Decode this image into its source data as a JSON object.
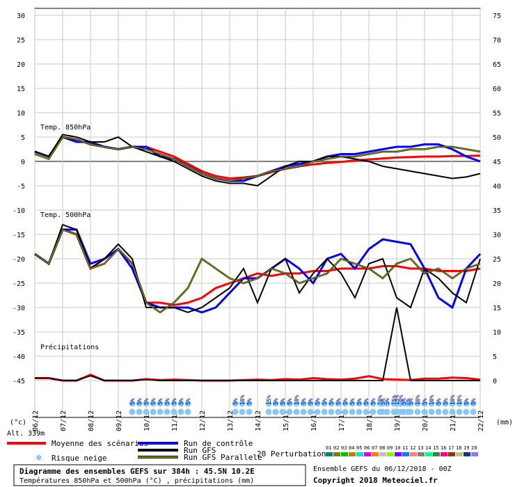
{
  "chart_data": {
    "type": "line",
    "left_axis_ticks": [
      30,
      25,
      20,
      15,
      10,
      5,
      0,
      -5,
      -10,
      -15,
      -20,
      -25,
      -30,
      -35,
      -40,
      -45
    ],
    "right_axis_ticks": [
      75,
      70,
      65,
      60,
      55,
      50,
      45,
      40,
      35,
      30,
      25,
      20,
      15,
      10,
      5,
      0
    ],
    "left_unit": "(°c)",
    "right_unit": "(mm)",
    "altitude": "Alt. 339m",
    "x_dates": [
      "06/12",
      "07/12",
      "08/12",
      "09/12",
      "10/12",
      "11/12",
      "12/12",
      "13/12",
      "14/12",
      "15/12",
      "16/12",
      "17/12",
      "18/12",
      "19/12",
      "20/12",
      "21/12",
      "22/12"
    ],
    "xlim": [
      0,
      16
    ],
    "ylim": [
      -45,
      30
    ],
    "panel_labels": {
      "t850": "Temp. 850hPa",
      "t500": "Temp. 500hPa",
      "precip": "Précipitations"
    },
    "series": [
      {
        "name": "Moyenne des scénarios",
        "color": "#ff0000",
        "panel": "t850",
        "x": [
          0,
          0.5,
          1,
          1.5,
          2,
          2.5,
          3,
          3.5,
          4,
          4.5,
          5,
          5.5,
          6,
          6.5,
          7,
          7.5,
          8,
          8.5,
          9,
          9.5,
          10,
          10.5,
          11,
          11.5,
          12,
          12.5,
          13,
          13.5,
          14,
          14.5,
          15,
          15.5,
          16
        ],
        "y": [
          2,
          1,
          5,
          4.5,
          3.5,
          3,
          2.5,
          3,
          3,
          2,
          1,
          -0.5,
          -2,
          -3,
          -3.5,
          -3.3,
          -3,
          -2.2,
          -1.5,
          -1,
          -0.6,
          -0.3,
          -0.1,
          0.2,
          0.4,
          0.6,
          0.8,
          0.9,
          1,
          1,
          1.1,
          1.1,
          1.2
        ]
      },
      {
        "name": "Run de contrôle",
        "color": "#0000ff",
        "panel": "t850",
        "x": [
          0,
          0.5,
          1,
          1.5,
          2,
          2.5,
          3,
          3.5,
          4,
          4.5,
          5,
          5.5,
          6,
          6.5,
          7,
          7.5,
          8,
          8.5,
          9,
          9.5,
          10,
          10.5,
          11,
          11.5,
          12,
          12.5,
          13,
          13.5,
          14,
          14.5,
          15,
          15.5,
          16
        ],
        "y": [
          2,
          1,
          5,
          4,
          4,
          3,
          2.5,
          3,
          3,
          1,
          0.5,
          -1,
          -2.5,
          -3.5,
          -4,
          -4,
          -3,
          -2,
          -1,
          -0.5,
          0,
          1,
          1.5,
          1.5,
          2,
          2.5,
          3,
          3,
          3.5,
          3.5,
          2.5,
          1,
          0
        ]
      },
      {
        "name": "Run GFS",
        "color": "#000000",
        "panel": "t850",
        "x": [
          0,
          0.5,
          1,
          1.5,
          2,
          2.5,
          3,
          3.5,
          4,
          4.5,
          5,
          5.5,
          6,
          6.5,
          7,
          7.5,
          8,
          8.5,
          9,
          9.5,
          10,
          10.5,
          11,
          11.5,
          12,
          12.5,
          13,
          13.5,
          14,
          14.5,
          15,
          15.5,
          16
        ],
        "y": [
          2,
          1,
          5.5,
          5,
          4,
          4,
          5,
          3,
          2,
          1,
          0,
          -1.5,
          -3,
          -4,
          -4.5,
          -4.5,
          -5,
          -3,
          -1,
          0,
          0,
          1,
          1,
          0.5,
          0,
          -1,
          -1.5,
          -2,
          -2.5,
          -3,
          -3.5,
          -3.2,
          -2.5
        ]
      },
      {
        "name": "Run GFS Parallele",
        "color": "#808000",
        "panel": "t850",
        "x": [
          0,
          0.5,
          1,
          1.5,
          2,
          2.5,
          3,
          3.5,
          4,
          4.5,
          5,
          5.5,
          6,
          6.5,
          7,
          7.5,
          8,
          8.5,
          9,
          9.5,
          10,
          10.5,
          11,
          11.5,
          12,
          12.5,
          13,
          13.5,
          14,
          14.5,
          15,
          15.5,
          16
        ],
        "y": [
          1.5,
          0.5,
          5,
          4.5,
          3.5,
          3,
          2.5,
          3,
          2.5,
          1.5,
          0.5,
          -1,
          -2.5,
          -3.5,
          -4,
          -3.5,
          -3,
          -2,
          -1.5,
          -1,
          0,
          0.5,
          1,
          1,
          1.5,
          2,
          2,
          2.5,
          2.5,
          3,
          3,
          2.5,
          2
        ]
      },
      {
        "name": "Moyenne des scénarios",
        "color": "#ff0000",
        "panel": "t500",
        "x": [
          0,
          0.5,
          1,
          1.5,
          2,
          2.5,
          3,
          3.5,
          4,
          4.5,
          5,
          5.5,
          6,
          6.5,
          7,
          7.5,
          8,
          8.5,
          9,
          9.5,
          10,
          10.5,
          11,
          11.5,
          12,
          12.5,
          13,
          13.5,
          14,
          14.5,
          15,
          15.5,
          16
        ],
        "y": [
          -19,
          -21,
          -14,
          -15,
          -22,
          -20,
          -18,
          -21,
          -29,
          -29,
          -29.5,
          -29,
          -28,
          -26,
          -25,
          -24,
          -23,
          -23.5,
          -23,
          -23,
          -22.5,
          -22.5,
          -22,
          -22,
          -22,
          -21.5,
          -21.5,
          -22,
          -22,
          -22.5,
          -22.5,
          -22.5,
          -22
        ]
      },
      {
        "name": "Run de contrôle",
        "color": "#0000ff",
        "panel": "t500",
        "x": [
          0,
          0.5,
          1,
          1.5,
          2,
          2.5,
          3,
          3.5,
          4,
          4.5,
          5,
          5.5,
          6,
          6.5,
          7,
          7.5,
          8,
          8.5,
          9,
          9.5,
          10,
          10.5,
          11,
          11.5,
          12,
          12.5,
          13,
          13.5,
          14,
          14.5,
          15,
          15.5,
          16
        ],
        "y": [
          -19,
          -21,
          -14,
          -14,
          -21,
          -20,
          -18,
          -22,
          -29,
          -30,
          -30,
          -30,
          -31,
          -30,
          -27,
          -24,
          -24,
          -22,
          -20,
          -22,
          -25,
          -20,
          -19,
          -22,
          -18,
          -16,
          -16.5,
          -17,
          -22,
          -28,
          -30,
          -22,
          -19
        ]
      },
      {
        "name": "Run GFS",
        "color": "#000000",
        "panel": "t500",
        "x": [
          0,
          0.5,
          1,
          1.5,
          2,
          2.5,
          3,
          3.5,
          4,
          4.5,
          5,
          5.5,
          6,
          6.5,
          7,
          7.5,
          8,
          8.5,
          9,
          9.5,
          10,
          10.5,
          11,
          11.5,
          12,
          12.5,
          13,
          13.5,
          14,
          14.5,
          15,
          15.5,
          16
        ],
        "y": [
          -19,
          -21,
          -13,
          -14,
          -22,
          -20,
          -17,
          -20,
          -30,
          -30,
          -30,
          -31,
          -30,
          -28,
          -26,
          -22,
          -29,
          -22,
          -20,
          -27,
          -23,
          -20,
          -23,
          -28,
          -21,
          -20,
          -28,
          -30,
          -22,
          -24,
          -27,
          -29,
          -20
        ]
      },
      {
        "name": "Run GFS Parallele",
        "color": "#808000",
        "panel": "t500",
        "x": [
          0,
          0.5,
          1,
          1.5,
          2,
          2.5,
          3,
          3.5,
          4,
          4.5,
          5,
          5.5,
          6,
          6.5,
          7,
          7.5,
          8,
          8.5,
          9,
          9.5,
          10,
          10.5,
          11,
          11.5,
          12,
          12.5,
          13,
          13.5,
          14,
          14.5,
          15,
          15.5,
          16
        ],
        "y": [
          -19,
          -21,
          -14,
          -15,
          -22,
          -21,
          -18,
          -21,
          -29,
          -31,
          -29,
          -26,
          -20,
          -22,
          -24,
          -25,
          -24,
          -22,
          -23,
          -25,
          -24,
          -23,
          -20,
          -21,
          -22,
          -24,
          -21,
          -20,
          -23,
          -22,
          -24,
          -22,
          -21
        ]
      },
      {
        "name": "Moyenne des scénarios",
        "color": "#ff0000",
        "panel": "precip",
        "x": [
          0,
          0.5,
          1,
          1.5,
          2,
          2.5,
          3,
          3.5,
          4,
          4.5,
          5,
          5.5,
          6,
          6.5,
          7,
          7.5,
          8,
          8.5,
          9,
          9.5,
          10,
          10.5,
          11,
          11.5,
          12,
          12.5,
          13,
          13.5,
          14,
          14.5,
          15,
          15.5,
          16
        ],
        "y": [
          0.5,
          0.5,
          0,
          0,
          1.2,
          0,
          0,
          0,
          0.3,
          0.1,
          0.2,
          0.1,
          0,
          0,
          0,
          0.1,
          0.2,
          0.1,
          0.3,
          0.2,
          0.5,
          0.3,
          0.2,
          0.4,
          0.9,
          0.3,
          0.2,
          0.1,
          0.4,
          0.4,
          0.6,
          0.5,
          0.2
        ]
      },
      {
        "name": "Run GFS",
        "color": "#000000",
        "panel": "precip",
        "x": [
          0,
          0.5,
          1,
          1.5,
          2,
          2.5,
          3,
          3.5,
          4,
          4.5,
          5,
          5.5,
          6,
          6.5,
          7,
          7.5,
          8,
          8.5,
          9,
          9.5,
          10,
          10.5,
          11,
          11.5,
          12,
          12.5,
          13,
          13.5,
          14,
          14.5,
          15,
          15.5,
          16
        ],
        "y": [
          0.5,
          0.5,
          0,
          0,
          1,
          0,
          0,
          0,
          0.2,
          0,
          0,
          0,
          0,
          0,
          0,
          0,
          0,
          0,
          0,
          0,
          0,
          0,
          0,
          0,
          0,
          0,
          15,
          0,
          0,
          0,
          0,
          0,
          0
        ]
      }
    ],
    "snow_risk": [
      {
        "date": 3.5,
        "pcts": [
          "5%",
          "5%",
          "5%",
          "5%",
          "5%",
          "5%",
          "5%",
          "5%",
          "5%"
        ]
      },
      {
        "date": 7.2,
        "pcts": [
          "5%",
          "10%",
          "5%"
        ]
      },
      {
        "date": 8.4,
        "pcts": [
          "15%",
          "5%",
          "5%",
          "5%",
          "10%",
          "5%",
          "5%",
          "5%",
          "5%",
          "5%",
          "5%",
          "5%",
          "5%",
          "5%",
          "5%",
          "5%",
          "10%",
          "5%",
          "15%",
          "10%",
          "5%"
        ]
      },
      {
        "date": 12.5,
        "pcts": [
          "5%"
        ]
      },
      {
        "date": 13,
        "pcts": [
          "15%",
          "5%",
          "5%",
          "10%",
          "5%",
          "10%",
          "5%",
          "5%",
          "10%",
          "10%",
          "5%",
          "5%"
        ]
      }
    ],
    "legend": {
      "moyenne": "Moyenne des scénarios",
      "controle": "Run de contrôle",
      "gfs": "Run GFS",
      "gfs_parallele": "Run GFS Parallele",
      "risque_neige": "Risque neige",
      "perturbations": "20 Perturbations",
      "pert_numbers": [
        "01",
        "02",
        "03",
        "04",
        "05",
        "06",
        "07",
        "08",
        "09",
        "10",
        "11",
        "12",
        "13",
        "14",
        "15",
        "16",
        "17",
        "18",
        "19",
        "20"
      ],
      "pert_colors": [
        "#008080",
        "#808000",
        "#00c000",
        "#c08000",
        "#00e0e0",
        "#e000e0",
        "#ff8000",
        "#c0c0c0",
        "#80ff00",
        "#8000ff",
        "#0080ff",
        "#ff8080",
        "#808080",
        "#00ff80",
        "#408040",
        "#ff0080",
        "#804000",
        "#c0c080",
        "#004080",
        "#8080ff"
      ]
    },
    "footer": {
      "title": "Diagramme des ensembles GEFS sur 384h : 45.5N 10.2E",
      "subtitle": "Températures 850hPa et 500hPa (°C) , précipitations (mm)",
      "run": "Ensemble GEFS du 06/12/2018 - 00Z",
      "copyright": "Copyright 2018 Meteociel.fr"
    }
  }
}
